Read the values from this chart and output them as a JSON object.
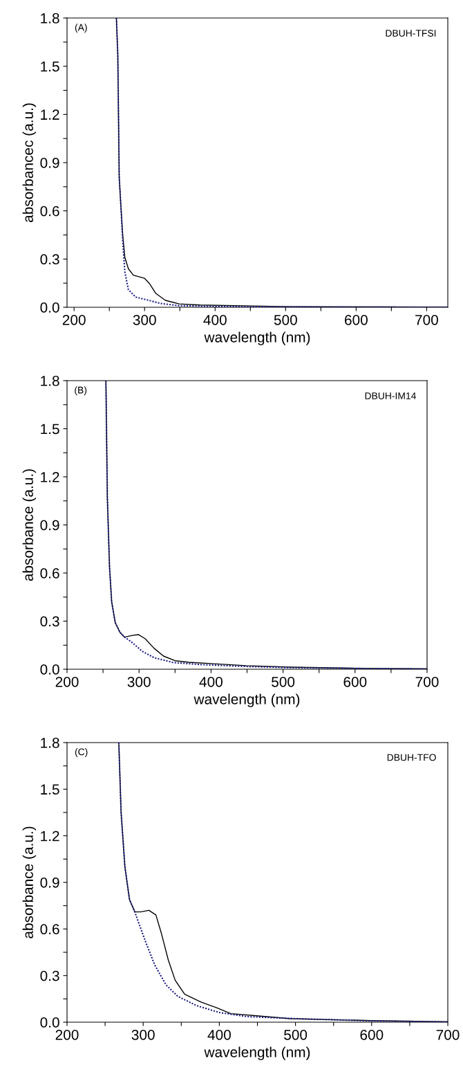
{
  "chart_data": [
    {
      "type": "line",
      "xlabel": "wavelength (nm)",
      "ylabel": "absorbancec (a.u.)",
      "annotations": [
        "(A)",
        "DBUH-TFSI"
      ],
      "xlim": [
        190,
        730
      ],
      "ylim": [
        0,
        1.8
      ],
      "xticks": [
        200,
        {
          "value": 250,
          "label": null
        },
        300,
        {
          "value": 350,
          "label": null
        },
        400,
        {
          "value": 450,
          "label": null
        },
        500,
        {
          "value": 550,
          "label": null
        },
        600,
        {
          "value": 650,
          "label": null
        },
        700
      ],
      "yticks": [
        {
          "value": 0,
          "label": "0.0"
        },
        {
          "value": 0.15,
          "label": null
        },
        {
          "value": 0.3,
          "label": "0.3"
        },
        {
          "value": 0.45,
          "label": null
        },
        {
          "value": 0.6,
          "label": "0.6"
        },
        {
          "value": 0.75,
          "label": null
        },
        {
          "value": 0.9,
          "label": "0.9"
        },
        {
          "value": 1.05,
          "label": null
        },
        {
          "value": 1.2,
          "label": "1.2"
        },
        {
          "value": 1.35,
          "label": null
        },
        {
          "value": 1.5,
          "label": "1.5"
        },
        {
          "value": 1.65,
          "label": null
        },
        {
          "value": 1.8,
          "label": "1.8"
        }
      ],
      "grid": false,
      "legend": false,
      "series": [
        {
          "color": "#000000",
          "line_style": "solid",
          "x": [
            260,
            262,
            264,
            266.5,
            269,
            272,
            277,
            284,
            300,
            306.5,
            316,
            329.5,
            349,
            379,
            428,
            507,
            600,
            700,
            729
          ],
          "values": [
            1.8,
            1.57,
            0.81,
            0.62,
            0.45,
            0.31,
            0.24,
            0.2,
            0.18,
            0.15,
            0.086,
            0.043,
            0.021,
            0.014,
            0.01,
            0.004,
            0.002,
            0.001,
            0.001
          ]
        },
        {
          "color": "#1a1a80",
          "line_style": "dotted",
          "x": [
            260,
            262,
            264,
            266.5,
            269,
            272,
            277,
            287,
            303,
            323,
            349,
            400,
            500,
            600,
            700,
            729
          ],
          "values": [
            1.8,
            1.57,
            0.81,
            0.62,
            0.41,
            0.22,
            0.11,
            0.064,
            0.046,
            0.024,
            0.01,
            0.005,
            0.003,
            0.002,
            0.001,
            0.001
          ]
        }
      ]
    },
    {
      "type": "line",
      "xlabel": "wavelength (nm)",
      "ylabel": "absorbance (a.u.)",
      "annotations": [
        "(B)",
        "DBUH-IM14"
      ],
      "xlim": [
        200,
        700
      ],
      "ylim": [
        0,
        1.8
      ],
      "xticks": [
        200,
        {
          "value": 250,
          "label": null
        },
        300,
        {
          "value": 350,
          "label": null
        },
        400,
        {
          "value": 450,
          "label": null
        },
        500,
        {
          "value": 550,
          "label": null
        },
        600,
        {
          "value": 650,
          "label": null
        },
        700
      ],
      "yticks": [
        {
          "value": 0,
          "label": "0.0"
        },
        {
          "value": 0.15,
          "label": null
        },
        {
          "value": 0.3,
          "label": "0.3"
        },
        {
          "value": 0.45,
          "label": null
        },
        {
          "value": 0.6,
          "label": "0.6"
        },
        {
          "value": 0.75,
          "label": null
        },
        {
          "value": 0.9,
          "label": "0.9"
        },
        {
          "value": 1.05,
          "label": null
        },
        {
          "value": 1.2,
          "label": "1.2"
        },
        {
          "value": 1.35,
          "label": null
        },
        {
          "value": 1.5,
          "label": "1.5"
        },
        {
          "value": 1.65,
          "label": null
        },
        {
          "value": 1.8,
          "label": "1.8"
        }
      ],
      "grid": false,
      "legend": false,
      "series": [
        {
          "color": "#000000",
          "line_style": "solid",
          "x": [
            254,
            256,
            259,
            262,
            267,
            273.5,
            280,
            289.5,
            299,
            308.6,
            321,
            334,
            350,
            369,
            401,
            449,
            510,
            600,
            700
          ],
          "values": [
            1.8,
            1.07,
            0.64,
            0.42,
            0.29,
            0.23,
            0.2,
            0.21,
            0.216,
            0.19,
            0.13,
            0.082,
            0.053,
            0.043,
            0.035,
            0.022,
            0.013,
            0.006,
            0.002
          ]
        },
        {
          "color": "#1a1a80",
          "line_style": "dotted",
          "x": [
            254,
            256,
            259,
            262,
            267,
            273.5,
            280,
            289.5,
            305,
            321,
            347,
            385,
            449,
            510,
            600,
            700
          ],
          "values": [
            1.8,
            1.07,
            0.64,
            0.42,
            0.29,
            0.23,
            0.2,
            0.17,
            0.11,
            0.072,
            0.042,
            0.029,
            0.017,
            0.01,
            0.005,
            0.002
          ]
        }
      ]
    },
    {
      "type": "line",
      "xlabel": "wavelength (nm)",
      "ylabel": "absorbance (a.u.)",
      "annotations": [
        "(C)",
        "DBUH-TFO"
      ],
      "xlim": [
        200,
        700
      ],
      "ylim": [
        0,
        1.8
      ],
      "xticks": [
        200,
        {
          "value": 250,
          "label": null
        },
        300,
        {
          "value": 350,
          "label": null
        },
        400,
        {
          "value": 450,
          "label": null
        },
        500,
        {
          "value": 550,
          "label": null
        },
        600,
        {
          "value": 650,
          "label": null
        },
        700
      ],
      "yticks": [
        {
          "value": 0,
          "label": "0.0"
        },
        {
          "value": 0.15,
          "label": null
        },
        {
          "value": 0.3,
          "label": "0.3"
        },
        {
          "value": 0.45,
          "label": null
        },
        {
          "value": 0.6,
          "label": "0.6"
        },
        {
          "value": 0.75,
          "label": null
        },
        {
          "value": 0.9,
          "label": "0.9"
        },
        {
          "value": 1.05,
          "label": null
        },
        {
          "value": 1.2,
          "label": "1.2"
        },
        {
          "value": 1.35,
          "label": null
        },
        {
          "value": 1.5,
          "label": "1.5"
        },
        {
          "value": 1.65,
          "label": null
        },
        {
          "value": 1.8,
          "label": "1.8"
        }
      ],
      "grid": false,
      "legend": false,
      "series": [
        {
          "color": "#000000",
          "line_style": "solid",
          "x": [
            268,
            271,
            276,
            282,
            289,
            297,
            307.6,
            316.7,
            324,
            333,
            342,
            354.5,
            375.8,
            397,
            415,
            451.5,
            494,
            600,
            700
          ],
          "values": [
            1.8,
            1.35,
            1.0,
            0.79,
            0.71,
            0.71,
            0.72,
            0.69,
            0.57,
            0.4,
            0.27,
            0.18,
            0.13,
            0.092,
            0.055,
            0.04,
            0.022,
            0.01,
            0.003
          ]
        },
        {
          "color": "#1a1a80",
          "line_style": "dotted",
          "x": [
            268,
            271,
            276,
            282,
            289,
            294,
            303,
            315,
            330,
            345.5,
            370,
            400,
            436,
            494,
            600,
            700
          ],
          "values": [
            1.8,
            1.35,
            1.0,
            0.79,
            0.71,
            0.64,
            0.52,
            0.37,
            0.24,
            0.166,
            0.107,
            0.062,
            0.036,
            0.024,
            0.008,
            0.002
          ]
        }
      ]
    }
  ]
}
